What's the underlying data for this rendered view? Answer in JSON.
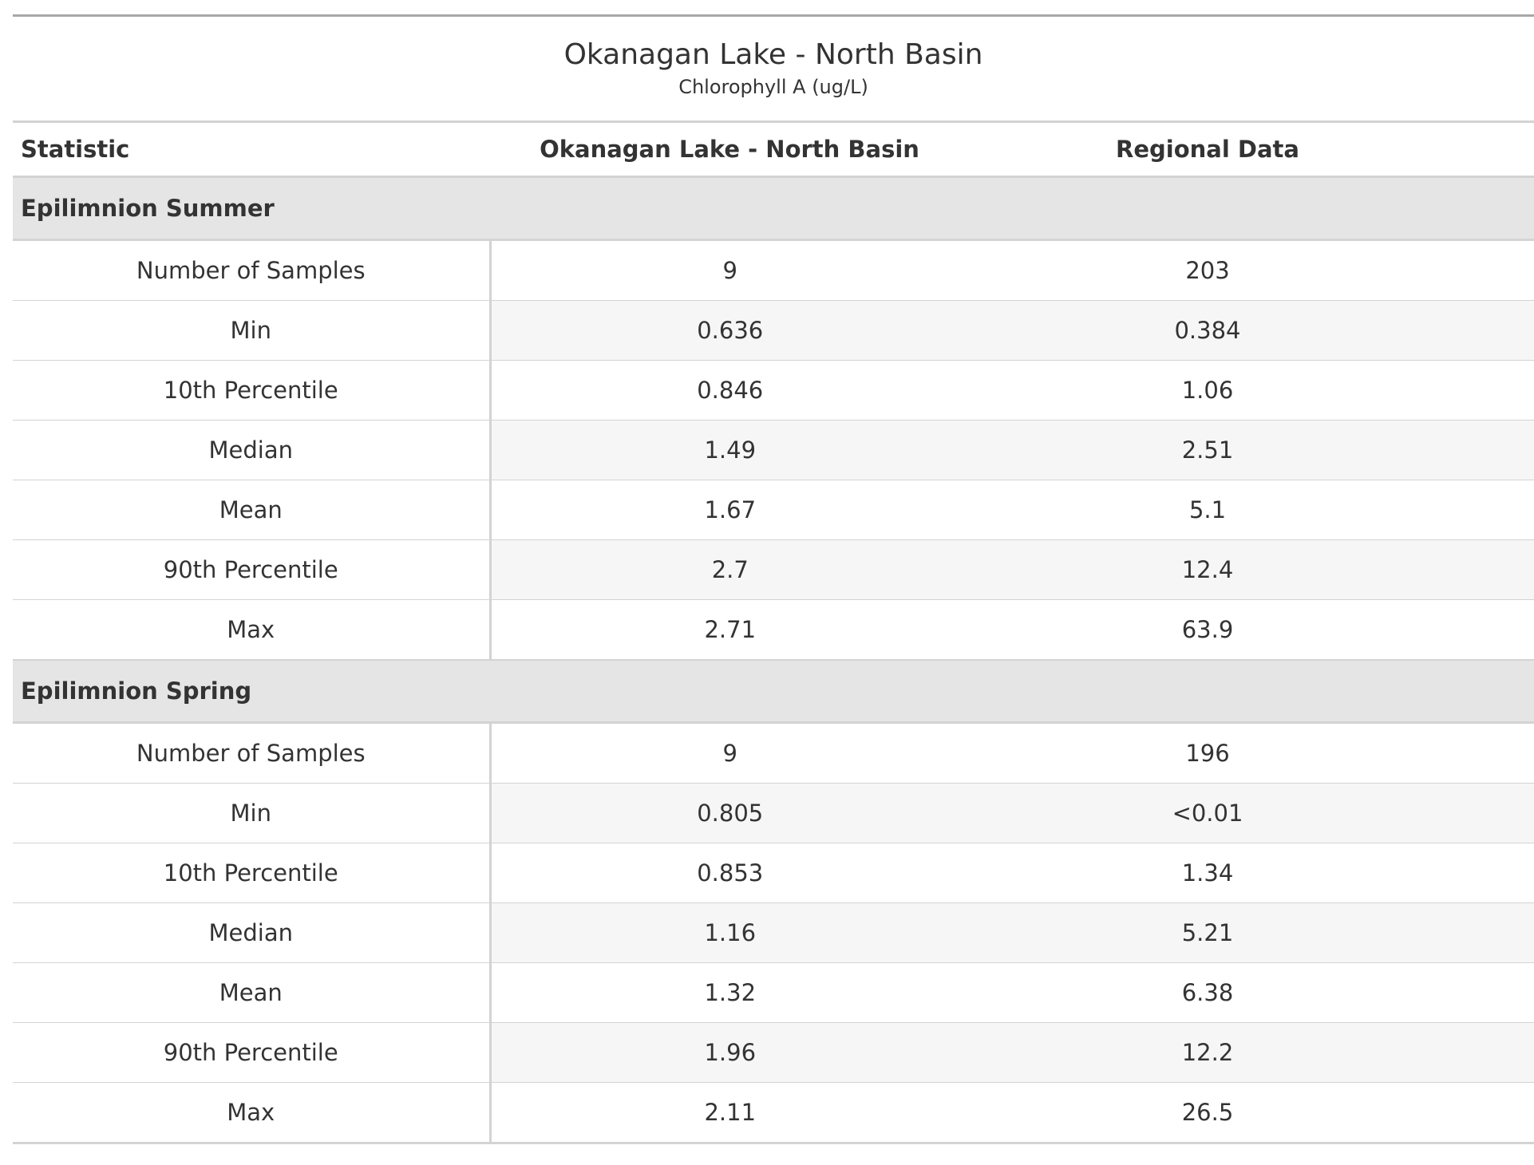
{
  "table": {
    "title": "Okanagan Lake - North Basin",
    "subtitle": "Chlorophyll A (ug/L)",
    "columns": [
      "Statistic",
      "Okanagan Lake - North Basin",
      "Regional Data"
    ],
    "groups": [
      {
        "label": "Epilimnion Summer",
        "rows": [
          {
            "stat": "Number of Samples",
            "site": "9",
            "regional": "203"
          },
          {
            "stat": "Min",
            "site": "0.636",
            "regional": "0.384"
          },
          {
            "stat": "10th Percentile",
            "site": "0.846",
            "regional": "1.06"
          },
          {
            "stat": "Median",
            "site": "1.49",
            "regional": "2.51"
          },
          {
            "stat": "Mean",
            "site": "1.67",
            "regional": "5.1"
          },
          {
            "stat": "90th Percentile",
            "site": "2.7",
            "regional": "12.4"
          },
          {
            "stat": "Max",
            "site": "2.71",
            "regional": "63.9"
          }
        ]
      },
      {
        "label": "Epilimnion Spring",
        "rows": [
          {
            "stat": "Number of Samples",
            "site": "9",
            "regional": "196"
          },
          {
            "stat": "Min",
            "site": "0.805",
            "regional": "<0.01"
          },
          {
            "stat": "10th Percentile",
            "site": "0.853",
            "regional": "1.34"
          },
          {
            "stat": "Median",
            "site": "1.16",
            "regional": "5.21"
          },
          {
            "stat": "Mean",
            "site": "1.32",
            "regional": "6.38"
          },
          {
            "stat": "90th Percentile",
            "site": "1.96",
            "regional": "12.2"
          },
          {
            "stat": "Max",
            "site": "2.11",
            "regional": "26.5"
          }
        ]
      }
    ]
  },
  "colors": {
    "text": "#333333",
    "top_rule": "#a8a8a8",
    "rule": "#d3d3d3",
    "group_band": "#e5e5e5",
    "stripe": "#f6f6f6"
  }
}
